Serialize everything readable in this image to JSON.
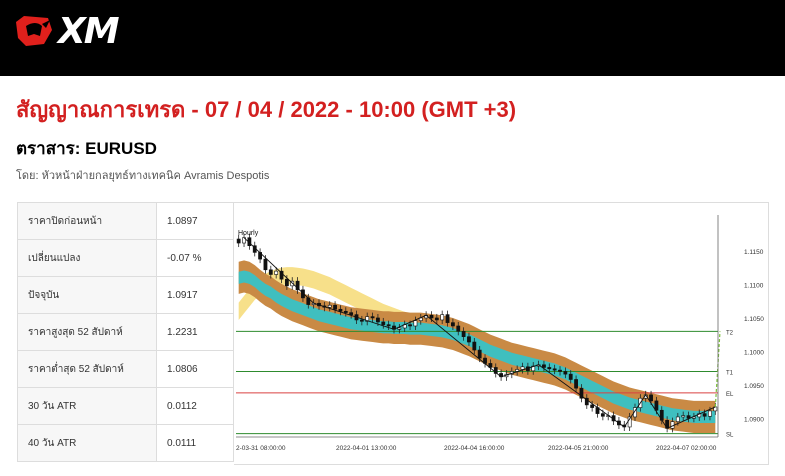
{
  "header": {
    "brand": "XM"
  },
  "title": "สัญญาณการเทรด - 07 / 04 / 2022 - 10:00 (GMT +3)",
  "instrument": "ตราสาร: EURUSD",
  "byline": "โดย: หัวหน้าฝ่ายกลยุทธ์ทางเทคนิค Avramis Despotis",
  "stats": [
    {
      "label": "ราคาปิดก่อนหน้า",
      "value": "1.0897"
    },
    {
      "label": "เปลี่ยนแปลง",
      "value": "-0.07 %"
    },
    {
      "label": "ปัจจุบัน",
      "value": "1.0917"
    },
    {
      "label": "ราคาสูงสุด 52 สัปดาห์",
      "value": "1.2231"
    },
    {
      "label": "ราคาต่ำสุด 52 สัปดาห์",
      "value": "1.0806"
    },
    {
      "label": "30 วัน ATR",
      "value": "0.0112"
    },
    {
      "label": "40 วัน ATR",
      "value": "0.0111"
    }
  ],
  "colors": {
    "title": "#d32020",
    "header_bg": "#000000",
    "level_green": "#2e8b2e",
    "level_red": "#d94040",
    "band_teal": "#3fbfbf",
    "band_brown": "#c98a45",
    "band_yellow": "#f7e08a"
  },
  "chart_data": {
    "type": "candlestick",
    "timeframe_label": "Hourly",
    "x_tick_labels": [
      "2-03-31 08:00:00",
      "2022-04-01 13:00:00",
      "2022-04-04 16:00:00",
      "2022-04-05 21:00:00",
      "2022-04-07 02:00:00"
    ],
    "y_tick_labels": [
      "1.1150",
      "1.1100",
      "1.1050",
      "1.1000",
      "1.0950",
      "1.0900"
    ],
    "ylim": [
      1.0875,
      1.118
    ],
    "levels": [
      {
        "name": "T2",
        "value": 1.103,
        "color": "green"
      },
      {
        "name": "T1",
        "value": 1.097,
        "color": "green"
      },
      {
        "name": "EL",
        "value": 1.0938,
        "color": "red"
      },
      {
        "name": "SL",
        "value": 1.0877,
        "color": "green"
      }
    ],
    "closes": [
      1.1162,
      1.117,
      1.1158,
      1.1148,
      1.1138,
      1.1122,
      1.1115,
      1.112,
      1.1108,
      1.1098,
      1.1105,
      1.1092,
      1.108,
      1.107,
      1.1072,
      1.1068,
      1.1066,
      1.1069,
      1.1063,
      1.106,
      1.1058,
      1.1055,
      1.1047,
      1.1045,
      1.1052,
      1.105,
      1.1044,
      1.104,
      1.1038,
      1.1033,
      1.1035,
      1.104,
      1.1038,
      1.1046,
      1.105,
      1.1054,
      1.105,
      1.1047,
      1.1055,
      1.1043,
      1.1038,
      1.103,
      1.1022,
      1.1014,
      1.1002,
      1.099,
      1.0982,
      1.0976,
      1.0967,
      1.0962,
      1.0966,
      1.097,
      1.0973,
      1.0977,
      1.0971,
      1.0978,
      1.098,
      1.0976,
      1.0974,
      1.0972,
      1.097,
      1.0966,
      1.0958,
      1.0945,
      1.093,
      1.092,
      1.0916,
      1.0907,
      1.0903,
      1.0904,
      1.0896,
      1.089,
      1.0887,
      1.0902,
      1.0916,
      1.093,
      1.0935,
      1.0926,
      1.0912,
      1.0897,
      1.0885,
      1.0895,
      1.0902,
      1.0904,
      1.09,
      1.0902,
      1.0907,
      1.0903,
      1.0911,
      1.0917
    ],
    "band_mid": [
      1.111,
      1.1112,
      1.111,
      1.1105,
      1.1098,
      1.1092,
      1.1088,
      1.1082,
      1.1077,
      1.1073,
      1.1069,
      1.1066,
      1.1063,
      1.106,
      1.1057,
      1.1054,
      1.1052,
      1.105,
      1.1048,
      1.1046,
      1.1044,
      1.1042,
      1.1041,
      1.104,
      1.1039,
      1.1038,
      1.1037,
      1.1036,
      1.1036,
      1.1035,
      1.1035,
      1.1035,
      1.1034,
      1.1034,
      1.1034,
      1.1033,
      1.1032,
      1.1031,
      1.103,
      1.1028,
      1.1026,
      1.1023,
      1.102,
      1.1017,
      1.1013,
      1.1009,
      1.1005,
      1.1001,
      1.0998,
      1.0995,
      1.0992,
      1.0989,
      1.0987,
      1.0985,
      1.0983,
      1.0981,
      1.0979,
      1.0977,
      1.0975,
      1.0973,
      1.097,
      1.0967,
      1.0963,
      1.0959,
      1.0955,
      1.0951,
      1.0947,
      1.0943,
      1.0939,
      1.0935,
      1.0931,
      1.0928,
      1.0925,
      1.0922,
      1.092,
      1.0918,
      1.0916,
      1.0914,
      1.0912,
      1.091,
      1.0908,
      1.0906,
      1.0905,
      1.0904,
      1.0903,
      1.0902,
      1.0902,
      1.0902,
      1.0902,
      1.0902
    ],
    "yellow_mid": [
      1.106,
      1.107,
      1.108,
      1.109,
      1.1097,
      1.1103,
      1.1107,
      1.111,
      1.1112,
      1.1113,
      1.1113,
      1.1112,
      1.1111,
      1.1109,
      1.1107,
      1.1104,
      1.1101,
      1.1098,
      1.1094,
      1.109,
      1.1086,
      1.1082,
      1.1078,
      1.1074,
      1.107,
      1.1066,
      1.1062,
      1.1058,
      1.1055,
      1.1052,
      1.1049,
      1.1046,
      1.1043,
      1.104,
      1.1037,
      1.1034,
      1.1031,
      1.1028,
      1.1025,
      1.1022,
      1.1019,
      1.1016,
      1.1013,
      1.101,
      1.1007,
      1.1004,
      1.1001,
      1.0998,
      1.0995,
      1.0992,
      1.0989,
      1.0986,
      1.0983,
      1.098,
      1.0977,
      1.0974,
      1.0971,
      1.0968,
      1.0965,
      1.0962,
      1.0959,
      1.0956,
      1.0953,
      1.095,
      1.0947,
      1.0944,
      1.0941,
      1.0938,
      1.0935,
      1.0932,
      1.0929,
      1.0927,
      1.0925,
      1.0923,
      1.0921,
      1.0919,
      1.0917,
      1.0915,
      1.0914,
      1.0913,
      1.0912,
      1.0911,
      1.091,
      1.0909,
      1.0908,
      1.0907,
      1.0906,
      1.0905,
      1.0905,
      1.0905
    ]
  }
}
